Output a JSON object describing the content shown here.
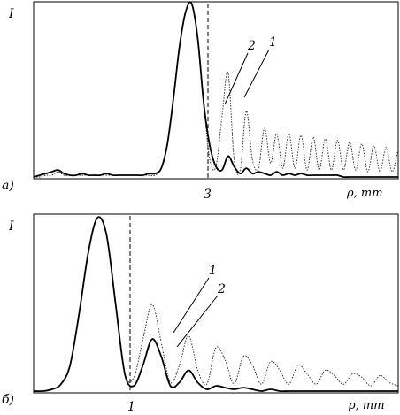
{
  "chart_data": [
    {
      "panel_label": "a)",
      "type": "line",
      "ylabel": "I",
      "xlabel": "ρ, mm",
      "x_ticks": [
        "3"
      ],
      "series": [
        {
          "name": "1",
          "style": "dotted",
          "x": [
            0.0,
            0.1,
            0.2,
            0.3,
            0.4,
            0.5,
            0.6,
            0.7,
            0.8,
            0.9,
            1.0,
            1.1,
            1.2,
            1.3,
            1.4,
            1.5,
            1.6,
            1.7,
            1.8,
            1.9,
            2.0,
            2.1,
            2.2,
            2.3,
            2.4,
            2.5,
            2.6,
            2.7,
            2.8,
            2.9,
            3.0,
            3.1,
            3.2,
            3.3,
            3.4,
            3.5,
            3.6,
            3.7,
            3.8,
            3.9,
            4.0,
            4.1,
            4.2,
            4.3,
            4.4,
            4.5,
            4.6,
            4.7,
            4.8,
            4.9,
            5.0,
            5.1,
            5.2,
            5.3,
            5.4,
            5.5,
            5.6,
            5.7,
            5.8,
            5.9,
            6.0
          ],
          "y": [
            0.0,
            0.0,
            0.01,
            0.01,
            0.03,
            0.01,
            0.01,
            0.01,
            0.01,
            0.01,
            0.01,
            0.01,
            0.01,
            0.01,
            0.01,
            0.01,
            0.01,
            0.01,
            0.01,
            0.01,
            0.01,
            0.05,
            0.19,
            0.45,
            0.75,
            0.95,
            1.0,
            0.8,
            0.42,
            0.1,
            0.06,
            0.35,
            0.6,
            0.1,
            0.04,
            0.38,
            0.1,
            0.05,
            0.28,
            0.08,
            0.25,
            0.05,
            0.25,
            0.05,
            0.24,
            0.04,
            0.23,
            0.04,
            0.22,
            0.04,
            0.21,
            0.04,
            0.2,
            0.04,
            0.19,
            0.03,
            0.18,
            0.03,
            0.17,
            0.03,
            0.16
          ]
        },
        {
          "name": "2",
          "style": "solid",
          "x": [
            0.0,
            0.1,
            0.2,
            0.3,
            0.4,
            0.5,
            0.6,
            0.7,
            0.8,
            0.9,
            1.0,
            1.1,
            1.2,
            1.3,
            1.4,
            1.5,
            1.6,
            1.7,
            1.8,
            1.9,
            2.0,
            2.1,
            2.2,
            2.3,
            2.4,
            2.5,
            2.6,
            2.7,
            2.8,
            2.9,
            3.0,
            3.1,
            3.2,
            3.3,
            3.4,
            3.5,
            3.6,
            3.7,
            3.8,
            3.9,
            4.0,
            4.1,
            4.2,
            4.3,
            4.4,
            4.5,
            4.6,
            4.7,
            4.8,
            4.9,
            5.0,
            5.1,
            5.2,
            5.3,
            5.4,
            5.5,
            5.6,
            5.7,
            5.8,
            5.9,
            6.0
          ],
          "y": [
            0.0,
            0.01,
            0.02,
            0.03,
            0.04,
            0.02,
            0.01,
            0.01,
            0.02,
            0.01,
            0.01,
            0.01,
            0.02,
            0.01,
            0.01,
            0.01,
            0.01,
            0.01,
            0.01,
            0.02,
            0.02,
            0.05,
            0.19,
            0.45,
            0.75,
            0.95,
            1.0,
            0.8,
            0.42,
            0.18,
            0.06,
            0.04,
            0.12,
            0.06,
            0.02,
            0.05,
            0.02,
            0.03,
            0.02,
            0.01,
            0.03,
            0.01,
            0.02,
            0.01,
            0.02,
            0.01,
            0.01,
            0.01,
            0.01,
            0.01,
            0.01,
            0.0,
            0.0,
            0.0,
            0.0,
            0.0,
            0.0,
            0.0,
            0.0,
            0.0,
            0.0
          ]
        }
      ]
    },
    {
      "panel_label": "б)",
      "type": "line",
      "ylabel": "I",
      "xlabel": "ρ, mm",
      "x_ticks": [
        "1"
      ],
      "series": [
        {
          "name": "1",
          "style": "dotted",
          "x": [
            0.0,
            0.1,
            0.2,
            0.3,
            0.4,
            0.5,
            0.6,
            0.7,
            0.8,
            0.9,
            1.0,
            1.1,
            1.2,
            1.3,
            1.4,
            1.5,
            1.6,
            1.7,
            1.8,
            1.9,
            2.0,
            2.1,
            2.2,
            2.3,
            2.4,
            2.5,
            2.6,
            2.7,
            2.8,
            2.9,
            3.0,
            3.1,
            3.2,
            3.3,
            3.4,
            3.5,
            3.6,
            3.7,
            3.8,
            3.9,
            4.0
          ],
          "y": [
            0.0,
            0.0,
            0.01,
            0.04,
            0.15,
            0.45,
            0.8,
            1.0,
            0.9,
            0.5,
            0.1,
            0.08,
            0.3,
            0.5,
            0.28,
            0.05,
            0.15,
            0.32,
            0.12,
            0.04,
            0.25,
            0.18,
            0.04,
            0.2,
            0.15,
            0.04,
            0.17,
            0.12,
            0.04,
            0.15,
            0.1,
            0.04,
            0.12,
            0.09,
            0.04,
            0.1,
            0.08,
            0.03,
            0.09,
            0.05,
            0.03
          ]
        },
        {
          "name": "2",
          "style": "solid",
          "x": [
            0.0,
            0.1,
            0.2,
            0.3,
            0.4,
            0.5,
            0.6,
            0.7,
            0.8,
            0.9,
            1.0,
            1.1,
            1.2,
            1.3,
            1.4,
            1.5,
            1.6,
            1.7,
            1.8,
            1.9,
            2.0,
            2.1,
            2.2,
            2.3,
            2.4,
            2.5,
            2.6,
            2.7,
            2.8,
            2.9,
            3.0,
            3.1,
            3.2,
            3.3,
            3.4,
            3.5,
            3.6,
            3.7,
            3.8,
            3.9,
            4.0
          ],
          "y": [
            0.0,
            0.0,
            0.01,
            0.04,
            0.15,
            0.45,
            0.8,
            1.0,
            0.9,
            0.5,
            0.1,
            0.03,
            0.15,
            0.3,
            0.2,
            0.03,
            0.05,
            0.12,
            0.05,
            0.01,
            0.03,
            0.02,
            0.01,
            0.02,
            0.01,
            0.0,
            0.01,
            0.0,
            0.0,
            0.0,
            0.0,
            0.0,
            0.0,
            0.0,
            0.0,
            0.0,
            0.0,
            0.0,
            0.0,
            0.0,
            0.0
          ]
        }
      ]
    }
  ]
}
